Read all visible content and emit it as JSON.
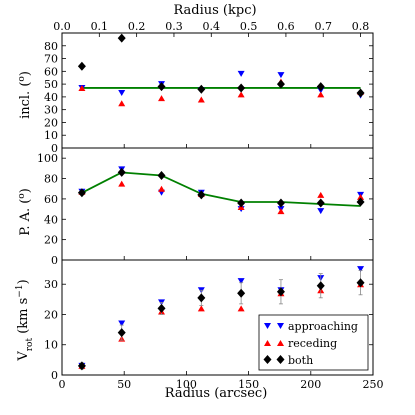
{
  "chart_data": [
    {
      "type": "scatter",
      "panel": "inclination",
      "ylabel": "incl. (°)",
      "top_xlabel": "Radius (kpc)",
      "top_xticks": [
        "0.0",
        "0.1",
        "0.2",
        "0.3",
        "0.4",
        "0.5",
        "0.6",
        "0.7",
        "0.8"
      ],
      "ylim": [
        0,
        90
      ],
      "yticks": [
        "0",
        "10",
        "20",
        "30",
        "40",
        "50",
        "60",
        "70",
        "80"
      ],
      "series": [
        {
          "marker": "down-triangle",
          "color": "#0000ff",
          "x": [
            16,
            48,
            80,
            112,
            144,
            176,
            208,
            240
          ],
          "y": [
            47,
            43,
            50,
            45,
            58,
            57,
            45,
            41
          ]
        },
        {
          "marker": "up-triangle",
          "color": "#ff0000",
          "x": [
            16,
            48,
            80,
            112,
            144,
            176,
            208,
            240
          ],
          "y": [
            47,
            35,
            39,
            38,
            42,
            52,
            42,
            44
          ]
        },
        {
          "marker": "diamond",
          "color": "#000000",
          "x": [
            16,
            48,
            80,
            112,
            144,
            176,
            208,
            240
          ],
          "y": [
            64,
            86,
            48,
            46,
            47,
            50,
            48,
            43
          ]
        }
      ],
      "model_line": {
        "color": "#008000",
        "x": [
          16,
          240
        ],
        "y": [
          47,
          47
        ]
      }
    },
    {
      "type": "scatter",
      "panel": "position-angle",
      "ylabel": "P. A. (°)",
      "ylim": [
        0,
        110
      ],
      "yticks": [
        "0",
        "20",
        "40",
        "60",
        "80",
        "100"
      ],
      "series": [
        {
          "marker": "down-triangle",
          "color": "#0000ff",
          "x": [
            16,
            48,
            80,
            112,
            144,
            176,
            208,
            240
          ],
          "y": [
            67,
            89,
            66,
            66,
            50,
            50,
            48,
            64
          ]
        },
        {
          "marker": "up-triangle",
          "color": "#ff0000",
          "x": [
            16,
            48,
            80,
            112,
            144,
            176,
            208,
            240
          ],
          "y": [
            67,
            75,
            70,
            65,
            52,
            48,
            64,
            62
          ]
        },
        {
          "marker": "diamond",
          "color": "#000000",
          "x": [
            16,
            48,
            80,
            112,
            144,
            176,
            208,
            240
          ],
          "y": [
            66,
            86,
            83,
            64,
            56,
            56,
            56,
            57
          ]
        }
      ],
      "model_line": {
        "color": "#008000",
        "x": [
          16,
          48,
          80,
          112,
          144,
          176,
          208,
          240
        ],
        "y": [
          66,
          86,
          83,
          65,
          57,
          57,
          55,
          53
        ]
      }
    },
    {
      "type": "scatter",
      "panel": "rotation-velocity",
      "ylabel": "V_rot (km s⁻¹)",
      "xlabel": "Radius (arcsec)",
      "xlim": [
        0,
        250
      ],
      "xticks": [
        "0",
        "50",
        "100",
        "150",
        "200",
        "250"
      ],
      "ylim": [
        0,
        38
      ],
      "yticks": [
        "0",
        "10",
        "20",
        "30"
      ],
      "legend": {
        "position": "lower-right",
        "entries": [
          "approaching",
          "receding",
          "both"
        ]
      },
      "series": [
        {
          "name": "approaching",
          "marker": "down-triangle",
          "color": "#0000ff",
          "x": [
            16,
            48,
            80,
            112,
            144,
            176,
            208,
            240
          ],
          "y": [
            3,
            17,
            24,
            28,
            31,
            28,
            32,
            35
          ]
        },
        {
          "name": "receding",
          "marker": "up-triangle",
          "color": "#ff0000",
          "x": [
            16,
            48,
            80,
            112,
            144,
            176,
            208,
            240
          ],
          "y": [
            3,
            12,
            21,
            22,
            22,
            27,
            28,
            30
          ]
        },
        {
          "name": "both",
          "marker": "diamond",
          "color": "#000000",
          "x": [
            16,
            48,
            80,
            112,
            144,
            176,
            208,
            240
          ],
          "y": [
            3,
            14,
            22,
            25.5,
            27,
            27.5,
            29.5,
            30.5
          ],
          "yerr": [
            1,
            2.5,
            2,
            2.5,
            3.5,
            4,
            4,
            4
          ]
        }
      ]
    }
  ]
}
